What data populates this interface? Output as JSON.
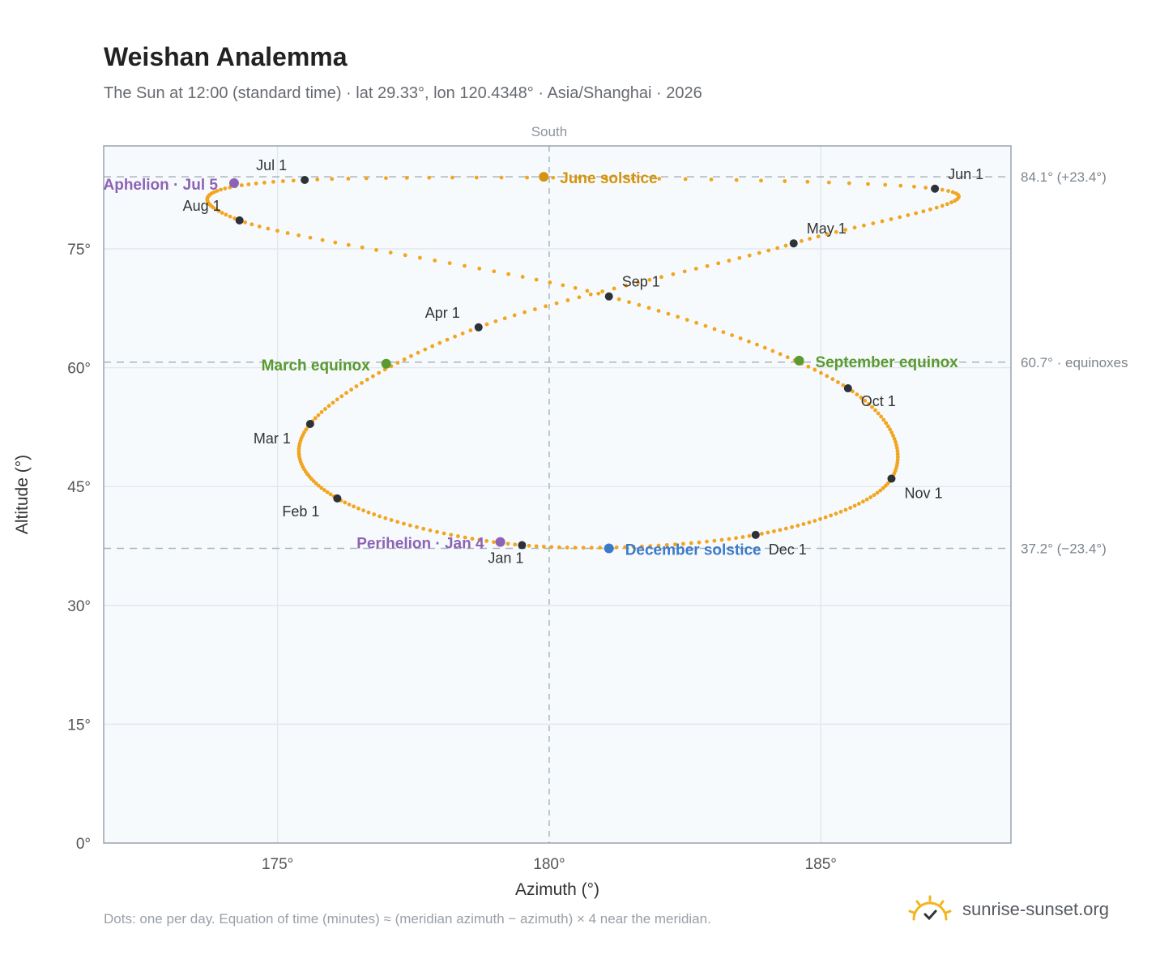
{
  "title": "Weishan Analemma",
  "subtitle": "The Sun at 12:00 (standard time) · lat 29.33°, lon 120.4348° · Asia/Shanghai · 2026",
  "footnote": "Dots: one per day. Equation of time (minutes) ≈ (meridian azimuth − azimuth) × 4 near the meridian.",
  "brand": {
    "text": "sunrise-sunset.org",
    "icon": "sun-logo-icon",
    "color": "#f2b51c"
  },
  "chart_data": {
    "type": "scatter",
    "xlabel": "Azimuth (°)",
    "ylabel": "Altitude (°)",
    "xlim": [
      171.8,
      188.5
    ],
    "ylim": [
      0,
      88
    ],
    "xticks": [
      175,
      180,
      185
    ],
    "xtick_labels": [
      "175°",
      "180°",
      "185°"
    ],
    "yticks": [
      0,
      15,
      30,
      45,
      60,
      75
    ],
    "ytick_labels": [
      "0°",
      "15°",
      "30°",
      "45°",
      "60°",
      "75°"
    ],
    "grid": true,
    "meridian": {
      "x": 180,
      "label": "South"
    },
    "reference_lines": [
      {
        "y": 84.1,
        "label": "84.1° (+23.4°)"
      },
      {
        "y": 60.7,
        "label": "60.7° · equinoxes"
      },
      {
        "y": 37.2,
        "label": "37.2° (−23.4°)"
      }
    ],
    "path_color": "#f2a51e",
    "month_marks": [
      {
        "label": "Jan 1",
        "x": 179.5,
        "y": 37.6
      },
      {
        "label": "Feb 1",
        "x": 176.1,
        "y": 43.5
      },
      {
        "label": "Mar 1",
        "x": 175.6,
        "y": 52.9
      },
      {
        "label": "Apr 1",
        "x": 178.7,
        "y": 65.1
      },
      {
        "label": "May 1",
        "x": 184.5,
        "y": 75.7
      },
      {
        "label": "Jun 1",
        "x": 187.1,
        "y": 82.6
      },
      {
        "label": "Jul 1",
        "x": 175.5,
        "y": 83.7
      },
      {
        "label": "Aug 1",
        "x": 174.3,
        "y": 78.6
      },
      {
        "label": "Sep 1",
        "x": 181.1,
        "y": 69.0
      },
      {
        "label": "Oct 1",
        "x": 185.5,
        "y": 57.4
      },
      {
        "label": "Nov 1",
        "x": 186.3,
        "y": 46.0
      },
      {
        "label": "Dec 1",
        "x": 183.8,
        "y": 38.9
      }
    ],
    "events": [
      {
        "label": "June solstice",
        "x": 179.9,
        "y": 84.1,
        "color": "#d4940f"
      },
      {
        "label": "March equinox",
        "x": 177.0,
        "y": 60.5,
        "color": "#5a9a2e"
      },
      {
        "label": "September equinox",
        "x": 184.6,
        "y": 60.9,
        "color": "#5a9a2e"
      },
      {
        "label": "December solstice",
        "x": 181.1,
        "y": 37.2,
        "color": "#3b7ac9"
      },
      {
        "label": "Aphelion · Jul 5",
        "x": 174.2,
        "y": 83.3,
        "color": "#8c63b5"
      },
      {
        "label": "Perihelion · Jan 4",
        "x": 179.1,
        "y": 38.0,
        "color": "#8c63b5"
      }
    ]
  }
}
